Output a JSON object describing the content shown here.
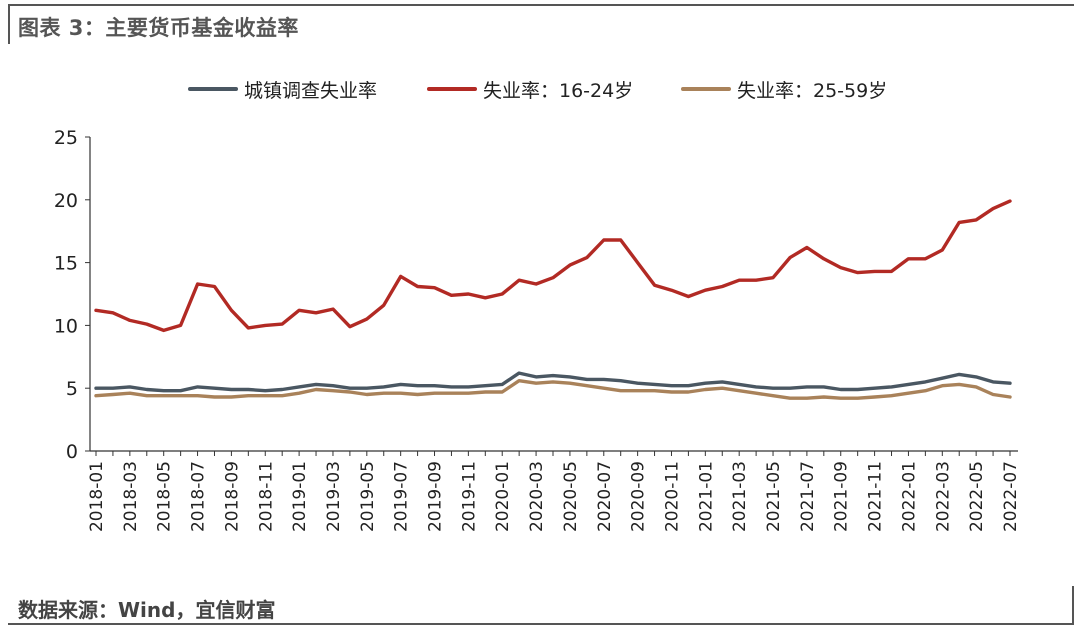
{
  "title": "图表 3：主要货币基金收益率",
  "source": "数据来源：Wind，宜信财富",
  "chart_data": {
    "type": "line",
    "ylim": [
      0,
      25
    ],
    "yticks": [
      0,
      5,
      10,
      15,
      20,
      25
    ],
    "grid": false,
    "legend_position": "top-center",
    "x": [
      "2018-01",
      "2018-02",
      "2018-03",
      "2018-04",
      "2018-05",
      "2018-06",
      "2018-07",
      "2018-08",
      "2018-09",
      "2018-10",
      "2018-11",
      "2018-12",
      "2019-01",
      "2019-02",
      "2019-03",
      "2019-04",
      "2019-05",
      "2019-06",
      "2019-07",
      "2019-08",
      "2019-09",
      "2019-10",
      "2019-11",
      "2019-12",
      "2020-01",
      "2020-02",
      "2020-03",
      "2020-04",
      "2020-05",
      "2020-06",
      "2020-07",
      "2020-08",
      "2020-09",
      "2020-10",
      "2020-11",
      "2020-12",
      "2021-01",
      "2021-02",
      "2021-03",
      "2021-04",
      "2021-05",
      "2021-06",
      "2021-07",
      "2021-08",
      "2021-09",
      "2021-10",
      "2021-11",
      "2021-12",
      "2022-01",
      "2022-02",
      "2022-03",
      "2022-04",
      "2022-05",
      "2022-06",
      "2022-07"
    ],
    "xtick_labels": [
      "2018-01",
      "2018-03",
      "2018-05",
      "2018-07",
      "2018-09",
      "2018-11",
      "2019-01",
      "2019-03",
      "2019-05",
      "2019-07",
      "2019-09",
      "2019-11",
      "2020-01",
      "2020-03",
      "2020-05",
      "2020-07",
      "2020-09",
      "2020-11",
      "2021-01",
      "2021-03",
      "2021-05",
      "2021-07",
      "2021-09",
      "2021-11",
      "2022-01",
      "2022-03",
      "2022-05",
      "2022-07"
    ],
    "series": [
      {
        "name": "城镇调查失业率",
        "color": "#4a5762",
        "values": [
          5.0,
          5.0,
          5.1,
          4.9,
          4.8,
          4.8,
          5.1,
          5.0,
          4.9,
          4.9,
          4.8,
          4.9,
          5.1,
          5.3,
          5.2,
          5.0,
          5.0,
          5.1,
          5.3,
          5.2,
          5.2,
          5.1,
          5.1,
          5.2,
          5.3,
          6.2,
          5.9,
          6.0,
          5.9,
          5.7,
          5.7,
          5.6,
          5.4,
          5.3,
          5.2,
          5.2,
          5.4,
          5.5,
          5.3,
          5.1,
          5.0,
          5.0,
          5.1,
          5.1,
          4.9,
          4.9,
          5.0,
          5.1,
          5.3,
          5.5,
          5.8,
          6.1,
          5.9,
          5.5,
          5.4
        ]
      },
      {
        "name": "失业率：16-24岁",
        "color": "#b22a24",
        "values": [
          11.2,
          11.0,
          10.4,
          10.1,
          9.6,
          10.0,
          13.3,
          13.1,
          11.2,
          9.8,
          10.0,
          10.1,
          11.2,
          11.0,
          11.3,
          9.9,
          10.5,
          11.6,
          13.9,
          13.1,
          13.0,
          12.4,
          12.5,
          12.2,
          12.5,
          13.6,
          13.3,
          13.8,
          14.8,
          15.4,
          16.8,
          16.8,
          15.0,
          13.2,
          12.8,
          12.3,
          12.8,
          13.1,
          13.6,
          13.6,
          13.8,
          15.4,
          16.2,
          15.3,
          14.6,
          14.2,
          14.3,
          14.3,
          15.3,
          15.3,
          16.0,
          18.2,
          18.4,
          19.3,
          19.9
        ]
      },
      {
        "name": "失业率：25-59岁",
        "color": "#a9825a",
        "values": [
          4.4,
          4.5,
          4.6,
          4.4,
          4.4,
          4.4,
          4.4,
          4.3,
          4.3,
          4.4,
          4.4,
          4.4,
          4.6,
          4.9,
          4.8,
          4.7,
          4.5,
          4.6,
          4.6,
          4.5,
          4.6,
          4.6,
          4.6,
          4.7,
          4.7,
          5.6,
          5.4,
          5.5,
          5.4,
          5.2,
          5.0,
          4.8,
          4.8,
          4.8,
          4.7,
          4.7,
          4.9,
          5.0,
          4.8,
          4.6,
          4.4,
          4.2,
          4.2,
          4.3,
          4.2,
          4.2,
          4.3,
          4.4,
          4.6,
          4.8,
          5.2,
          5.3,
          5.1,
          4.5,
          4.3
        ]
      }
    ]
  }
}
